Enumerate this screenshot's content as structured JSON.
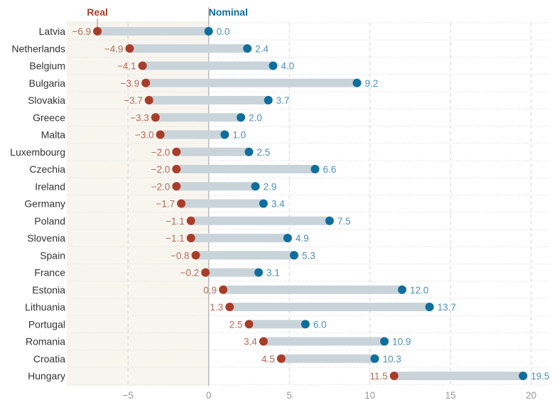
{
  "chart_data": {
    "type": "dumbbell",
    "legend": {
      "real": "Real",
      "nominal": "Nominal"
    },
    "categories": [
      "Latvia",
      "Netherlands",
      "Belgium",
      "Bulgaria",
      "Slovakia",
      "Greece",
      "Malta",
      "Luxembourg",
      "Czechia",
      "Ireland",
      "Germany",
      "Poland",
      "Slovenia",
      "Spain",
      "France",
      "Estonia",
      "Lithuania",
      "Portugal",
      "Romania",
      "Croatia",
      "Hungary"
    ],
    "series": [
      {
        "name": "Real",
        "values": [
          -6.9,
          -4.9,
          -4.1,
          -3.9,
          -3.7,
          -3.3,
          -3.0,
          -2.0,
          -2.0,
          -2.0,
          -1.7,
          -1.1,
          -1.1,
          -0.8,
          -0.2,
          0.9,
          1.3,
          2.5,
          3.4,
          4.5,
          11.5
        ],
        "labels": [
          "−6.9",
          "−4.9",
          "−4.1",
          "−3.9",
          "−3.7",
          "−3.3",
          "−3.0",
          "−2.0",
          "−2.0",
          "−2.0",
          "−1.7",
          "−1.1",
          "−1.1",
          "−0.8",
          "−0.2",
          "0.9",
          "1.3",
          "2.5",
          "3.4",
          "4.5",
          "11.5"
        ]
      },
      {
        "name": "Nominal",
        "values": [
          0.0,
          2.4,
          4.0,
          9.2,
          3.7,
          2.0,
          1.0,
          2.5,
          6.6,
          2.9,
          3.4,
          7.5,
          4.9,
          5.3,
          3.1,
          12.0,
          13.7,
          6.0,
          10.9,
          10.3,
          19.5
        ],
        "labels": [
          "0.0",
          "2.4",
          "4.0",
          "9.2",
          "3.7",
          "2.0",
          "1.0",
          "2.5",
          "6.6",
          "2.9",
          "3.4",
          "7.5",
          "4.9",
          "5.3",
          "3.1",
          "12.0",
          "13.7",
          "6.0",
          "10.9",
          "10.3",
          "19.5"
        ]
      }
    ],
    "xticks": [
      -5,
      0,
      5,
      10,
      15,
      20
    ],
    "xtick_labels": [
      "−5",
      "0",
      "5",
      "10",
      "15",
      "20"
    ],
    "xlim": [
      -8.8,
      21.2
    ],
    "grid": true,
    "shaded_region": [
      -8.8,
      0
    ],
    "colors": {
      "real": "#a83e2a",
      "nominal": "#0e6e9e",
      "real_label": "#b56a58",
      "nominal_label": "#4d8fb8",
      "bar": "#c9d4da",
      "shade": "#f8f5ef",
      "grid": "#d6d6d6",
      "zero": "#bbbbbb"
    }
  }
}
